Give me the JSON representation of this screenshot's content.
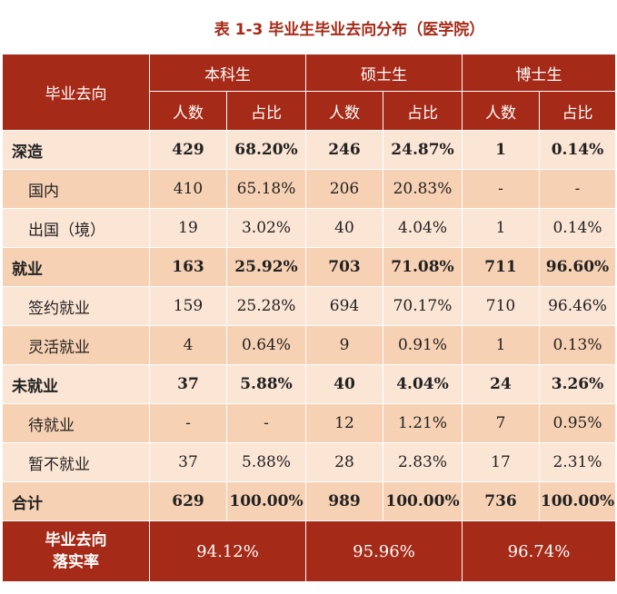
{
  "title": "表 1-3  毕业生毕业去向分布（医学院）",
  "header": {
    "row_label": "毕业去向",
    "groups": [
      "本科生",
      "硕士生",
      "博士生"
    ],
    "subcols": [
      "人数",
      "占比"
    ]
  },
  "rows": [
    {
      "label": "深造",
      "level": 0,
      "cells": [
        "429",
        "68.20%",
        "246",
        "24.87%",
        "1",
        "0.14%"
      ]
    },
    {
      "label": "国内",
      "level": 1,
      "cells": [
        "410",
        "65.18%",
        "206",
        "20.83%",
        "-",
        "-"
      ]
    },
    {
      "label": "出国（境）",
      "level": 1,
      "cells": [
        "19",
        "3.02%",
        "40",
        "4.04%",
        "1",
        "0.14%"
      ]
    },
    {
      "label": "就业",
      "level": 0,
      "cells": [
        "163",
        "25.92%",
        "703",
        "71.08%",
        "711",
        "96.60%"
      ]
    },
    {
      "label": "签约就业",
      "level": 1,
      "cells": [
        "159",
        "25.28%",
        "694",
        "70.17%",
        "710",
        "96.46%"
      ]
    },
    {
      "label": "灵活就业",
      "level": 1,
      "cells": [
        "4",
        "0.64%",
        "9",
        "0.91%",
        "1",
        "0.13%"
      ]
    },
    {
      "label": "未就业",
      "level": 0,
      "cells": [
        "37",
        "5.88%",
        "40",
        "4.04%",
        "24",
        "3.26%"
      ]
    },
    {
      "label": "待就业",
      "level": 1,
      "cells": [
        "-",
        "-",
        "12",
        "1.21%",
        "7",
        "0.95%"
      ]
    },
    {
      "label": "暂不就业",
      "level": 1,
      "cells": [
        "37",
        "5.88%",
        "28",
        "2.83%",
        "17",
        "2.31%"
      ]
    },
    {
      "label": "合计",
      "level": 0,
      "cells": [
        "629",
        "100.00%",
        "989",
        "100.00%",
        "736",
        "100.00%"
      ]
    }
  ],
  "footer": {
    "label_line1": "毕业去向",
    "label_line2": "落实率",
    "rates": [
      "94.12%",
      "95.96%",
      "96.74%"
    ]
  },
  "colors": {
    "header_bg": "#a52a17",
    "row_light": "#fbe5d5",
    "row_dark": "#f7d1b3"
  }
}
